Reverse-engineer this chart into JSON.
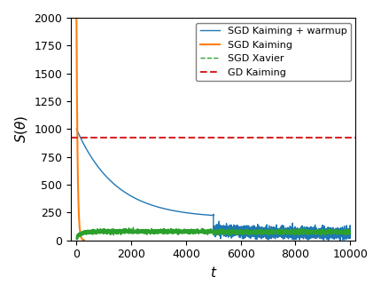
{
  "title": "",
  "xlabel": "$t$",
  "ylabel": "$S(\\theta)$",
  "xlim": [
    -200,
    10200
  ],
  "ylim": [
    0,
    2000
  ],
  "yticks": [
    0,
    250,
    500,
    750,
    1000,
    1250,
    1500,
    1750,
    2000
  ],
  "xticks": [
    0,
    2000,
    4000,
    6000,
    8000,
    10000
  ],
  "gd_kaiming_value": 925,
  "warmup_end": 5000,
  "total_steps": 10000,
  "legend_labels": [
    "SGD Kaiming + warmup",
    "SGD Kaiming",
    "SGD Xavier",
    "GD Kaiming"
  ],
  "colors": {
    "sgd_kaiming_warmup": "#1f77b4",
    "sgd_kaiming": "#ff7f0e",
    "sgd_xavier": "#2ca02c",
    "gd_kaiming": "#d62728"
  },
  "figsize": [
    4.3,
    3.3
  ],
  "dpi": 100
}
